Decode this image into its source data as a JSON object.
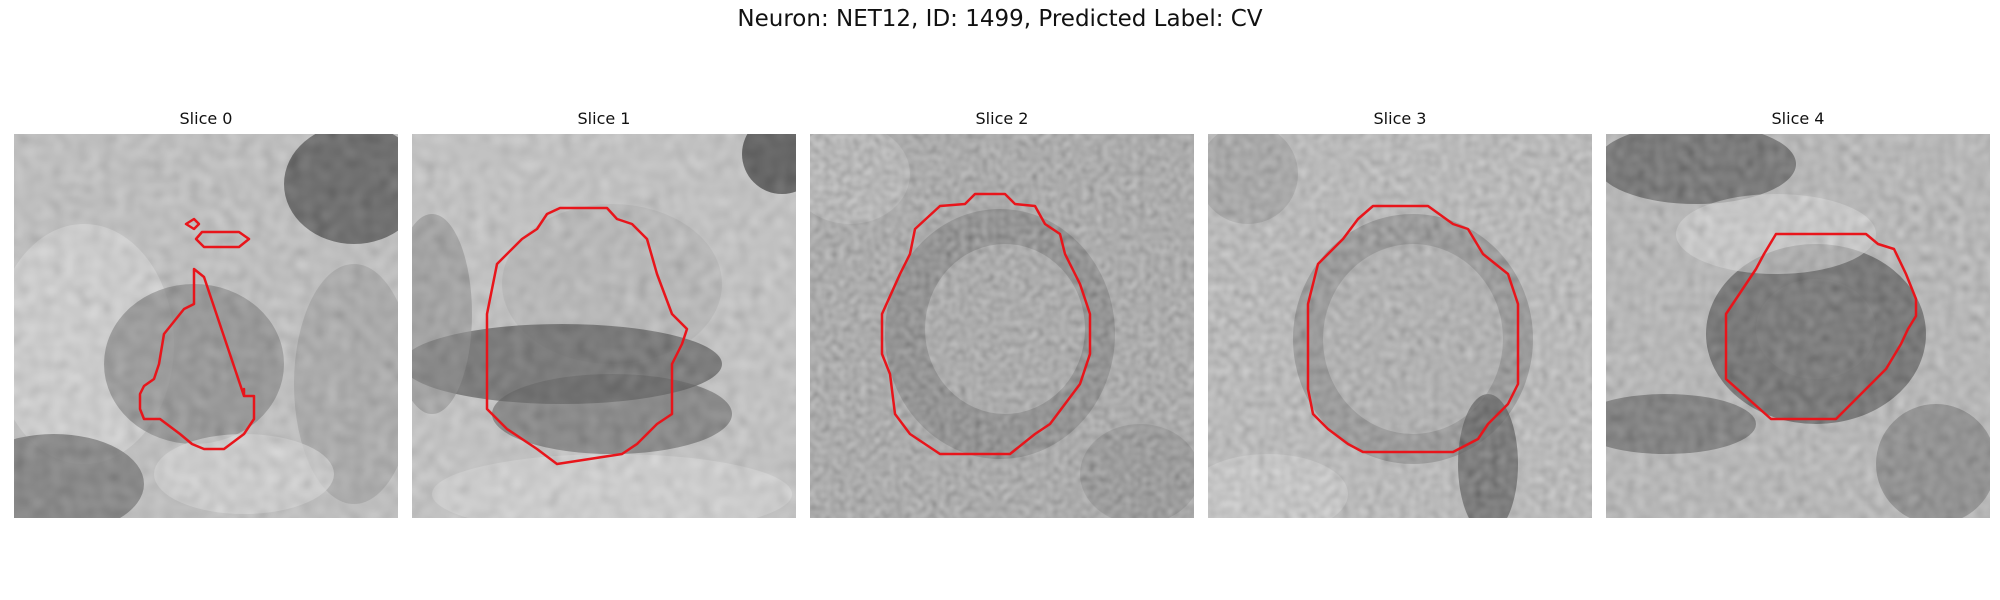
{
  "figure": {
    "title": "Neuron: NET12, ID: 1499, Predicted Label: CV"
  },
  "panels": [
    {
      "title": "Slice 0"
    },
    {
      "title": "Slice 1"
    },
    {
      "title": "Slice 2"
    },
    {
      "title": "Slice 3"
    },
    {
      "title": "Slice 4"
    }
  ],
  "colors": {
    "contour": "#e8151b"
  }
}
